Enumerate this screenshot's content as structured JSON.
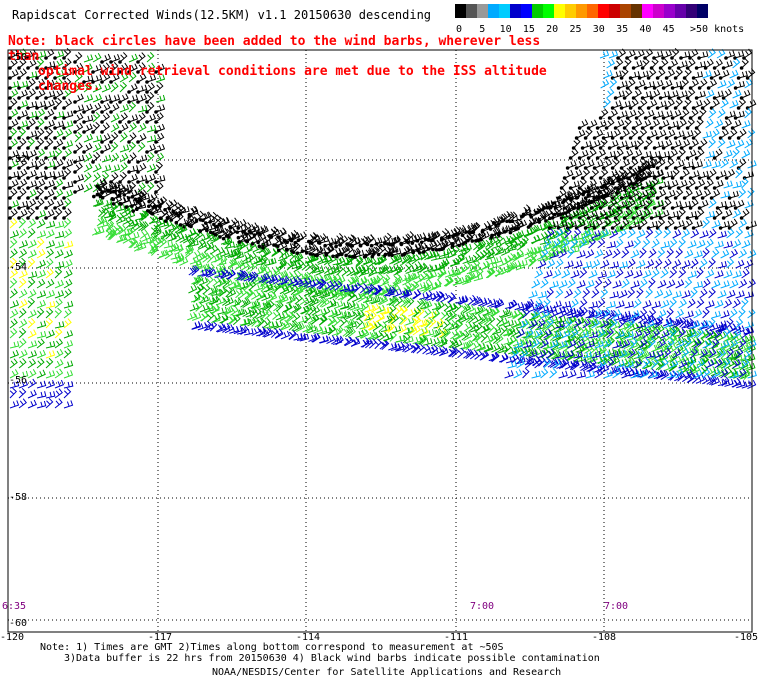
{
  "title": "Rapidscat Corrected Winds(12.5KM) v1.1 20150630 descending",
  "note_lines": [
    "Note: black circles have been added to the wind barbs, wherever less than",
    "optimal wind retrieval conditions are met due to the ISS altitude changes."
  ],
  "legend": {
    "colors": [
      "#000000",
      "#555555",
      "#999999",
      "#00aaff",
      "#00ccff",
      "#0000cc",
      "#0000ff",
      "#00cc00",
      "#00ff00",
      "#ffff00",
      "#ffcc00",
      "#ff9900",
      "#ff6600",
      "#ff0000",
      "#cc0000",
      "#aa4400",
      "#663300",
      "#ff00ff",
      "#cc00cc",
      "#9900cc",
      "#6600aa",
      "#330077",
      "#000066"
    ],
    "labels": [
      "0",
      "5",
      "10",
      "15",
      "20",
      "25",
      "30",
      "35",
      "40",
      "45",
      ">50 knots"
    ]
  },
  "lat_labels": [
    "-50",
    "-52",
    "-54",
    "-56",
    "-58",
    "-60"
  ],
  "lon_labels": [
    "-120",
    "-117",
    "-114",
    "-111",
    "-108",
    "-105"
  ],
  "time_labels": [
    "6:35",
    "7:00",
    "7:00"
  ],
  "footer": {
    "note1": "Note: 1) Times are GMT 2)Times along bottom correspond to measurement at ~50S",
    "note2": "3)Data buffer is 22 hrs from 20150630 4) Black wind barbs indicate possible contamination",
    "credit": "NOAA/NESDIS/Center for Satellite Applications and Research"
  },
  "swath_colors": {
    "flag": "#000000",
    "green": "#00aa00",
    "lime": "#33dd33",
    "blue": "#0000cc",
    "cyan": "#00aaff",
    "yellow": "#ffff00"
  }
}
